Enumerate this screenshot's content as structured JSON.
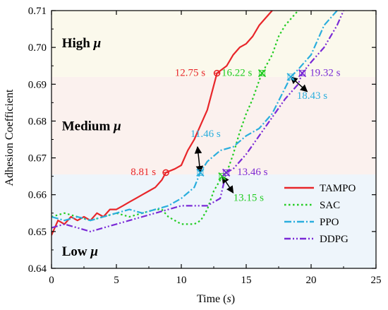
{
  "chart_data": {
    "type": "line",
    "xlabel_main": "Time (",
    "xlabel_var": "s",
    "xlabel_end": ")",
    "ylabel": "Adhesion Coefficient",
    "xlim": [
      0,
      25
    ],
    "ylim": [
      0.64,
      0.71
    ],
    "x_ticks": [
      "0",
      "5",
      "10",
      "15",
      "20",
      "25"
    ],
    "y_ticks": [
      "0.64",
      "0.65",
      "0.66",
      "0.67",
      "0.68",
      "0.69",
      "0.70",
      "0.71"
    ],
    "regions": [
      {
        "text": "Low",
        "symbol": "μ",
        "y_from": 0.64,
        "y_to": 0.6655,
        "color": "#eef5fb",
        "label_x": 0.8,
        "label_y": 0.6435
      },
      {
        "text": "Medium",
        "symbol": "μ",
        "y_from": 0.6655,
        "y_to": 0.692,
        "color": "#fbf1ee",
        "label_x": 0.8,
        "label_y": 0.6775
      },
      {
        "text": "High",
        "symbol": "μ",
        "y_from": 0.692,
        "y_to": 0.71,
        "color": "#fbf9ec",
        "label_x": 0.8,
        "label_y": 0.7
      }
    ],
    "series": [
      {
        "name": "TAMPO",
        "color": "#e8262a",
        "dash": "",
        "points": [
          [
            0,
            0.649
          ],
          [
            0.5,
            0.653
          ],
          [
            1,
            0.652
          ],
          [
            1.5,
            0.654
          ],
          [
            2,
            0.653
          ],
          [
            2.5,
            0.654
          ],
          [
            3,
            0.653
          ],
          [
            3.5,
            0.655
          ],
          [
            4,
            0.654
          ],
          [
            4.5,
            0.656
          ],
          [
            5,
            0.656
          ],
          [
            5.5,
            0.657
          ],
          [
            6,
            0.658
          ],
          [
            6.5,
            0.659
          ],
          [
            7,
            0.66
          ],
          [
            7.5,
            0.661
          ],
          [
            8,
            0.662
          ],
          [
            8.5,
            0.664
          ],
          [
            8.81,
            0.666
          ],
          [
            9.5,
            0.667
          ],
          [
            10,
            0.668
          ],
          [
            10.5,
            0.672
          ],
          [
            11,
            0.675
          ],
          [
            11.5,
            0.679
          ],
          [
            12,
            0.683
          ],
          [
            12.75,
            0.693
          ],
          [
            13.5,
            0.695
          ],
          [
            14,
            0.698
          ],
          [
            14.5,
            0.7
          ],
          [
            15,
            0.701
          ],
          [
            15.5,
            0.703
          ],
          [
            16,
            0.706
          ],
          [
            16.5,
            0.708
          ],
          [
            17,
            0.71
          ]
        ]
      },
      {
        "name": "SAC",
        "color": "#22cc22",
        "dash": "2.5,3.5",
        "points": [
          [
            0,
            0.654
          ],
          [
            1,
            0.655
          ],
          [
            2,
            0.654
          ],
          [
            3,
            0.653
          ],
          [
            4,
            0.654
          ],
          [
            5,
            0.655
          ],
          [
            6,
            0.654
          ],
          [
            7,
            0.655
          ],
          [
            8,
            0.656
          ],
          [
            8.5,
            0.656
          ],
          [
            9,
            0.654
          ],
          [
            10,
            0.652
          ],
          [
            11,
            0.652
          ],
          [
            11.5,
            0.653
          ],
          [
            12,
            0.656
          ],
          [
            12.5,
            0.661
          ],
          [
            13,
            0.664
          ],
          [
            13.15,
            0.665
          ],
          [
            13.5,
            0.666
          ],
          [
            14,
            0.671
          ],
          [
            14.5,
            0.677
          ],
          [
            15,
            0.682
          ],
          [
            15.5,
            0.686
          ],
          [
            16,
            0.691
          ],
          [
            16.22,
            0.693
          ],
          [
            17,
            0.698
          ],
          [
            17.5,
            0.703
          ],
          [
            18,
            0.706
          ],
          [
            18.5,
            0.708
          ],
          [
            19,
            0.71
          ]
        ]
      },
      {
        "name": "PPO",
        "color": "#2aaedd",
        "dash": "10,3,2,3",
        "points": [
          [
            0,
            0.654
          ],
          [
            1,
            0.653
          ],
          [
            2,
            0.654
          ],
          [
            3,
            0.653
          ],
          [
            4,
            0.654
          ],
          [
            5,
            0.655
          ],
          [
            6,
            0.656
          ],
          [
            7,
            0.655
          ],
          [
            8,
            0.656
          ],
          [
            9,
            0.657
          ],
          [
            10,
            0.659
          ],
          [
            11,
            0.662
          ],
          [
            11.46,
            0.666
          ],
          [
            12,
            0.669
          ],
          [
            13,
            0.672
          ],
          [
            14,
            0.673
          ],
          [
            15,
            0.676
          ],
          [
            16,
            0.678
          ],
          [
            17,
            0.682
          ],
          [
            18,
            0.689
          ],
          [
            18.43,
            0.692
          ],
          [
            19,
            0.694
          ],
          [
            20,
            0.698
          ],
          [
            21,
            0.706
          ],
          [
            22,
            0.71
          ]
        ]
      },
      {
        "name": "DDPG",
        "color": "#7a2ad6",
        "dash": "9,3,2,3,2,3",
        "points": [
          [
            0,
            0.651
          ],
          [
            1,
            0.652
          ],
          [
            2,
            0.651
          ],
          [
            3,
            0.65
          ],
          [
            4,
            0.651
          ],
          [
            5,
            0.652
          ],
          [
            6,
            0.653
          ],
          [
            7,
            0.654
          ],
          [
            8,
            0.655
          ],
          [
            9,
            0.656
          ],
          [
            10,
            0.657
          ],
          [
            11,
            0.657
          ],
          [
            12,
            0.657
          ],
          [
            13,
            0.659
          ],
          [
            13.46,
            0.666
          ],
          [
            14,
            0.667
          ],
          [
            15,
            0.671
          ],
          [
            16,
            0.676
          ],
          [
            17,
            0.681
          ],
          [
            18,
            0.686
          ],
          [
            19,
            0.69
          ],
          [
            19.32,
            0.693
          ],
          [
            20,
            0.696
          ],
          [
            21,
            0.7
          ],
          [
            22,
            0.706
          ],
          [
            22.5,
            0.71
          ]
        ]
      }
    ],
    "markers": [
      {
        "series": "TAMPO",
        "x": 8.81,
        "y": 0.666,
        "label": "8.81 s",
        "label_x": 6.1,
        "label_y": 0.6653,
        "color": "#e8262a",
        "shape": "circle"
      },
      {
        "series": "TAMPO",
        "x": 12.75,
        "y": 0.693,
        "label": "12.75 s",
        "label_x": 9.5,
        "label_y": 0.6923,
        "color": "#e8262a",
        "shape": "circle"
      },
      {
        "series": "SAC",
        "x": 16.22,
        "y": 0.693,
        "label": "16.22 s",
        "label_x": 13.1,
        "label_y": 0.6923,
        "color": "#22cc22",
        "shape": "cross"
      },
      {
        "series": "PPO",
        "x": 11.46,
        "y": 0.666,
        "label": "11.46 s",
        "label_x": 10.7,
        "label_y": 0.6757,
        "color": "#2aaedd",
        "shape": "cross",
        "arrow_to": [
          11.25,
          0.673
        ]
      },
      {
        "series": "PPO",
        "x": 18.43,
        "y": 0.692,
        "label": "18.43 s",
        "label_x": 18.9,
        "label_y": 0.686,
        "color": "#2aaedd",
        "shape": "cross",
        "arrow_to": [
          19.7,
          0.688
        ]
      },
      {
        "series": "SAC",
        "x": 13.15,
        "y": 0.665,
        "label": "13.15 s",
        "label_x": 14.0,
        "label_y": 0.6583,
        "color": "#22cc22",
        "shape": "cross",
        "arrow_to": [
          14.0,
          0.6605
        ]
      },
      {
        "series": "DDPG",
        "x": 13.46,
        "y": 0.666,
        "label": "13.46 s",
        "label_x": 14.3,
        "label_y": 0.6653,
        "color": "#7a2ad6",
        "shape": "cross"
      },
      {
        "series": "DDPG",
        "x": 19.32,
        "y": 0.693,
        "label": "19.32 s",
        "label_x": 19.9,
        "label_y": 0.6923,
        "color": "#7a2ad6",
        "shape": "cross"
      }
    ],
    "legend": {
      "placement": "bottom-right"
    }
  }
}
